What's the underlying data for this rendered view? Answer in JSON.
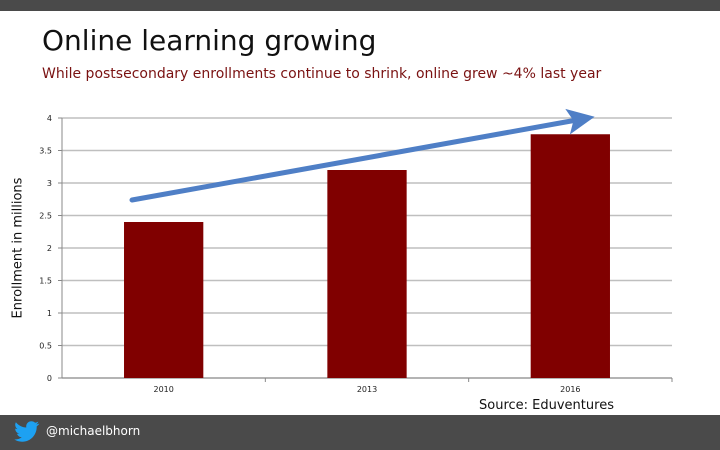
{
  "slide": {
    "title": "Online learning growing",
    "subtitle": "While postsecondary enrollments continue to shrink, online grew ~4% last year",
    "source": "Source: Eduventures",
    "twitter_handle": "@michaelbhorn"
  },
  "colors": {
    "bar": "#800000",
    "arrow": "#4f7fc6",
    "bars_bar": "#4a4a4a",
    "subtitle": "#7a1212"
  },
  "icons": {
    "social": "twitter-bird-icon"
  },
  "chart_data": {
    "type": "bar",
    "categories": [
      "2010",
      "2013",
      "2016"
    ],
    "values": [
      2.4,
      3.2,
      3.75
    ],
    "ylabel": "Enrollment in millions",
    "ylim": [
      0,
      4
    ],
    "yticks": [
      "0",
      "0.5",
      "1",
      "1.5",
      "2",
      "2.5",
      "3",
      "3.5",
      "4"
    ],
    "grid": true,
    "legend": "none",
    "annotation": "trend-arrow rising from 2010 to 2016"
  }
}
